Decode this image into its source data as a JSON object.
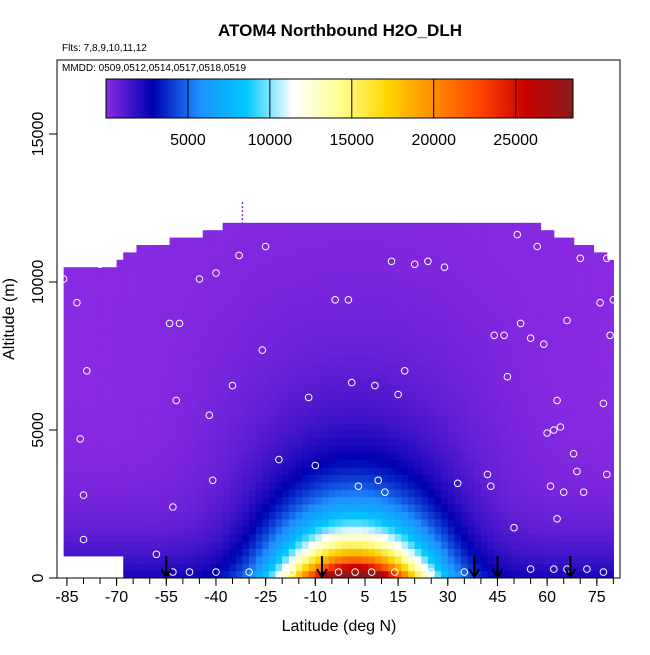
{
  "chart_data": {
    "type": "heatmap",
    "title": "ATOM4 Northbound H2O_DLH",
    "subtitle_flights": "Flts: 7,8,9,10,11,12",
    "subtitle_dates": "MMDD: 0509,0512,0514,0517,0518,0519",
    "xlabel": "Latitude (deg N)",
    "ylabel": "Altitude (m)",
    "xlim": [
      -88,
      82
    ],
    "ylim": [
      0,
      17500
    ],
    "x_ticks": [
      -85,
      -70,
      -55,
      -40,
      -25,
      -10,
      5,
      15,
      30,
      45,
      60,
      75
    ],
    "y_ticks": [
      0,
      5000,
      10000,
      15000
    ],
    "colorbar": {
      "range": [
        0,
        28500
      ],
      "ticks": [
        5000,
        10000,
        15000,
        20000,
        25000
      ],
      "colors": [
        "#8a2be2",
        "#0000b4",
        "#1e90ff",
        "#00c8ff",
        "#ffffff",
        "#ffff96",
        "#ffd700",
        "#ff8c00",
        "#ff4500",
        "#c80000",
        "#8b1a1a"
      ]
    },
    "surface_envelope": [
      {
        "lat": -85,
        "top": 10500
      },
      {
        "lat": -70,
        "top": 10500
      },
      {
        "lat": -65,
        "top": 11000
      },
      {
        "lat": -45,
        "top": 11500
      },
      {
        "lat": -33,
        "top": 12000
      },
      {
        "lat": 55,
        "top": 12000
      },
      {
        "lat": 62,
        "top": 11500
      },
      {
        "lat": 75,
        "top": 11000
      },
      {
        "lat": 80,
        "top": 10500
      }
    ],
    "profile_markers_lat": [
      -55,
      -8,
      38,
      45,
      67
    ],
    "sample_points": [
      {
        "lat": -86,
        "alt": 10100
      },
      {
        "lat": -82,
        "alt": 9300
      },
      {
        "lat": -81,
        "alt": 4700
      },
      {
        "lat": -80,
        "alt": 2800
      },
      {
        "lat": -79,
        "alt": 7000
      },
      {
        "lat": -75,
        "alt": 10600
      },
      {
        "lat": -53,
        "alt": 2400
      },
      {
        "lat": -52,
        "alt": 6000
      },
      {
        "lat": -54,
        "alt": 8600
      },
      {
        "lat": -51,
        "alt": 8600
      },
      {
        "lat": -45,
        "alt": 10100
      },
      {
        "lat": -42,
        "alt": 5500
      },
      {
        "lat": -41,
        "alt": 3300
      },
      {
        "lat": -40,
        "alt": 10300
      },
      {
        "lat": -35,
        "alt": 6500
      },
      {
        "lat": -33,
        "alt": 10900
      },
      {
        "lat": -26,
        "alt": 7700
      },
      {
        "lat": -25,
        "alt": 11200
      },
      {
        "lat": -21,
        "alt": 4000
      },
      {
        "lat": -12,
        "alt": 6100
      },
      {
        "lat": -10,
        "alt": 3800
      },
      {
        "lat": -4,
        "alt": 9400
      },
      {
        "lat": 0,
        "alt": 9400
      },
      {
        "lat": 1,
        "alt": 6600
      },
      {
        "lat": 3,
        "alt": 3100
      },
      {
        "lat": 8,
        "alt": 6500
      },
      {
        "lat": 9,
        "alt": 3300
      },
      {
        "lat": 11,
        "alt": 2900
      },
      {
        "lat": 13,
        "alt": 10700
      },
      {
        "lat": 15,
        "alt": 6200
      },
      {
        "lat": 17,
        "alt": 7000
      },
      {
        "lat": 20,
        "alt": 10600
      },
      {
        "lat": 24,
        "alt": 10700
      },
      {
        "lat": 29,
        "alt": 10500
      },
      {
        "lat": 33,
        "alt": 3200
      },
      {
        "lat": 42,
        "alt": 3500
      },
      {
        "lat": 43,
        "alt": 3100
      },
      {
        "lat": 44,
        "alt": 8200
      },
      {
        "lat": 47,
        "alt": 8200
      },
      {
        "lat": 48,
        "alt": 6800
      },
      {
        "lat": 52,
        "alt": 8600
      },
      {
        "lat": 55,
        "alt": 8100
      },
      {
        "lat": 51,
        "alt": 11600
      },
      {
        "lat": 57,
        "alt": 11200
      },
      {
        "lat": 59,
        "alt": 7900
      },
      {
        "lat": 60,
        "alt": 4900
      },
      {
        "lat": 61,
        "alt": 3100
      },
      {
        "lat": 62,
        "alt": 5000
      },
      {
        "lat": 63,
        "alt": 6000
      },
      {
        "lat": 64,
        "alt": 5100
      },
      {
        "lat": 65,
        "alt": 2900
      },
      {
        "lat": 66,
        "alt": 8700
      },
      {
        "lat": 68,
        "alt": 4200
      },
      {
        "lat": 69,
        "alt": 3600
      },
      {
        "lat": 70,
        "alt": 10800
      },
      {
        "lat": 71,
        "alt": 2900
      },
      {
        "lat": 76,
        "alt": 9300
      },
      {
        "lat": 77,
        "alt": 5900
      },
      {
        "lat": 78,
        "alt": 3500
      },
      {
        "lat": 78,
        "alt": 10800
      },
      {
        "lat": 79,
        "alt": 8200
      },
      {
        "lat": 80,
        "alt": 9400
      },
      {
        "lat": 82,
        "alt": 6300
      },
      {
        "lat": -58,
        "alt": 800
      },
      {
        "lat": -53,
        "alt": 200
      },
      {
        "lat": -48,
        "alt": 200
      },
      {
        "lat": -40,
        "alt": 200
      },
      {
        "lat": -30,
        "alt": 200
      },
      {
        "lat": -17,
        "alt": 200
      },
      {
        "lat": -3,
        "alt": 200
      },
      {
        "lat": 2,
        "alt": 200
      },
      {
        "lat": 7,
        "alt": 200
      },
      {
        "lat": 14,
        "alt": 200
      },
      {
        "lat": 25,
        "alt": 200
      },
      {
        "lat": 35,
        "alt": 200
      },
      {
        "lat": 50,
        "alt": 1700
      },
      {
        "lat": 55,
        "alt": 300
      },
      {
        "lat": 62,
        "alt": 300
      },
      {
        "lat": 63,
        "alt": 2000
      },
      {
        "lat": 66,
        "alt": 300
      },
      {
        "lat": 72,
        "alt": 300
      },
      {
        "lat": 77,
        "alt": 200
      },
      {
        "lat": -80,
        "alt": 1300
      }
    ],
    "grid": false
  }
}
